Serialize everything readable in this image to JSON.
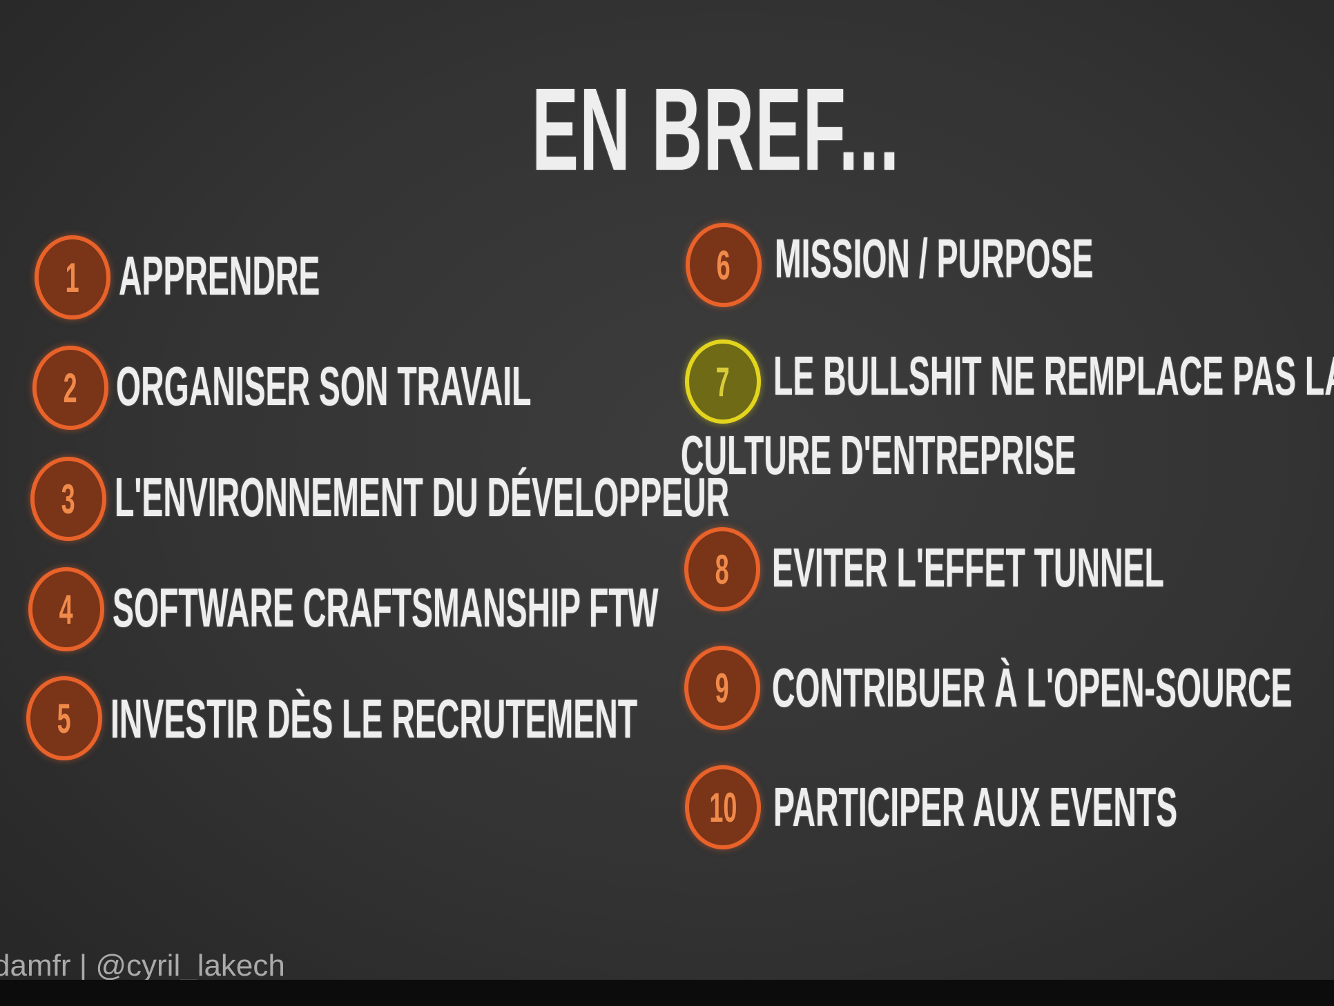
{
  "slide": {
    "title": "EN BREF...",
    "left_items": [
      {
        "number": "1",
        "text": "APPRENDRE"
      },
      {
        "number": "2",
        "text": "ORGANISER SON TRAVAIL"
      },
      {
        "number": "3",
        "text": "L'ENVIRONNEMENT DU DÉVELOPPEUR"
      },
      {
        "number": "4",
        "text": "SOFTWARE CRAFTSMANSHIP FTW"
      },
      {
        "number": "5",
        "text": "INVESTIR DÈS LE RECRUTEMENT"
      }
    ],
    "right_items": [
      {
        "number": "6",
        "text": "MISSION / PURPOSE"
      },
      {
        "number": "7",
        "lines": [
          "LE BULLSHIT NE REMPLACE PAS LA",
          "CULTURE D'ENTREPRISE"
        ]
      },
      {
        "number": "8",
        "text": "EVITER L'EFFET TUNNEL"
      },
      {
        "number": "9",
        "text": "CONTRIBUER À L'OPEN-SOURCE"
      },
      {
        "number": "10",
        "text": "PARTICIPER AUX EVENTS"
      }
    ],
    "footer": "damfr | @cyril_lakech"
  }
}
